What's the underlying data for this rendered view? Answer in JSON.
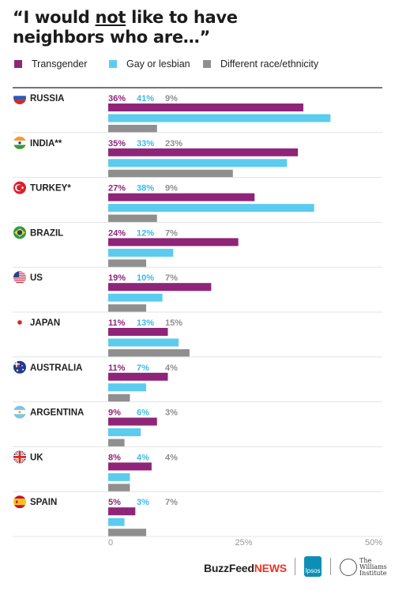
{
  "title": {
    "line1_pre": "“I would ",
    "line1_underline": "not",
    "line1_post": " like to have",
    "line2": "neighbors who are…”"
  },
  "legend": [
    {
      "label": "Transgender",
      "color": "#8e2579"
    },
    {
      "label": "Gay or lesbian",
      "color": "#5ccbf0"
    },
    {
      "label": "Different race/ethnicity",
      "color": "#8f8f8f"
    }
  ],
  "footer": {
    "buzzfeed": "BuzzFeed",
    "news": "NEWS",
    "ipsos": "Ipsos",
    "williams_line1": "The",
    "williams_line2": "Williams",
    "williams_line3": "Institute"
  },
  "chart_data": {
    "type": "bar",
    "orientation": "horizontal",
    "categories": [
      "RUSSIA",
      "INDIA**",
      "TURKEY*",
      "BRAZIL",
      "US",
      "JAPAN",
      "AUSTRALIA",
      "ARGENTINA",
      "UK",
      "SPAIN"
    ],
    "series": [
      {
        "name": "Transgender",
        "color": "#8e2579",
        "values": [
          36,
          35,
          27,
          24,
          19,
          11,
          11,
          9,
          8,
          5
        ]
      },
      {
        "name": "Gay or lesbian",
        "color": "#5ccbf0",
        "values": [
          41,
          33,
          38,
          12,
          10,
          13,
          7,
          6,
          4,
          3
        ]
      },
      {
        "name": "Different race/ethnicity",
        "color": "#8f8f8f",
        "values": [
          9,
          23,
          9,
          7,
          7,
          15,
          4,
          3,
          4,
          7
        ]
      }
    ],
    "value_labels": [
      [
        "36%",
        "41%",
        "9%"
      ],
      [
        "35%",
        "33%",
        "23%"
      ],
      [
        "27%",
        "38%",
        "9%"
      ],
      [
        "24%",
        "12%",
        "7%"
      ],
      [
        "19%",
        "10%",
        "7%"
      ],
      [
        "11%",
        "13%",
        "15%"
      ],
      [
        "11%",
        "7%",
        "4%"
      ],
      [
        "9%",
        "6%",
        "3%"
      ],
      [
        "8%",
        "4%",
        "4%"
      ],
      [
        "5%",
        "3%",
        "7%"
      ]
    ],
    "flags": [
      "russia-flag-icon",
      "india-flag-icon",
      "turkey-flag-icon",
      "brazil-flag-icon",
      "us-flag-icon",
      "japan-flag-icon",
      "australia-flag-icon",
      "argentina-flag-icon",
      "uk-flag-icon",
      "spain-flag-icon"
    ],
    "xlim": [
      0,
      50
    ],
    "xticks": [
      "0",
      "25%",
      "50%"
    ],
    "xtick_values": [
      0,
      25,
      50
    ],
    "grid": false
  }
}
